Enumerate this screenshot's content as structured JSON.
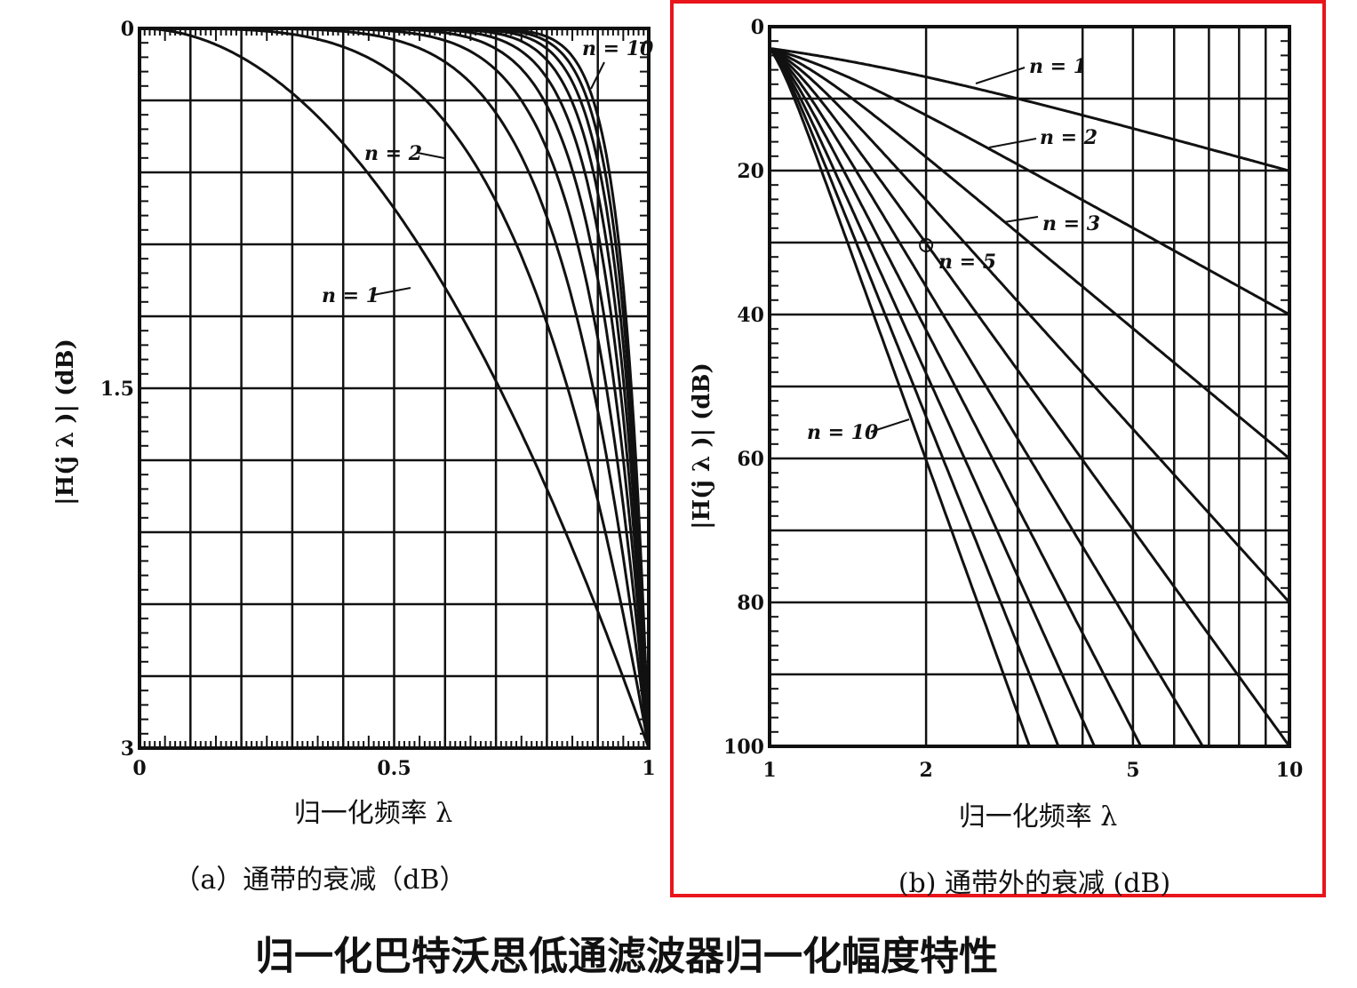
{
  "title": "归一化巴特沃思低通滤波器归一化幅度特性",
  "chart_data": [
    {
      "panel": "a",
      "type": "line",
      "caption": "（a）通带的衰减（dB）",
      "xlabel": "归一化频率  λ",
      "ylabel": "|H(j λ )|  (dB)",
      "x_ticks": [
        "0",
        "0.5",
        "1"
      ],
      "y_ticks": [
        "0",
        "1.5",
        "3"
      ],
      "xlim": [
        0,
        1
      ],
      "ylim": [
        0,
        3
      ],
      "y_inverted": true,
      "grid": true,
      "series": [
        {
          "name": "n = 1",
          "n": 1
        },
        {
          "n": 2
        },
        {
          "n": 3
        },
        {
          "n": 4
        },
        {
          "n": 5
        },
        {
          "n": 6
        },
        {
          "n": 7
        },
        {
          "n": 8
        },
        {
          "n": 9
        },
        {
          "name": "n = 10",
          "n": 10
        }
      ],
      "annotations": [
        "n = 1",
        "n = 2",
        "n = 10"
      ]
    },
    {
      "panel": "b",
      "type": "line",
      "caption": "(b) 通带外的衰减 (dB)",
      "xlabel": "归一化频率  λ",
      "ylabel": "|H(j λ )|  (dB)",
      "x_ticks": [
        "1",
        "2",
        "5",
        "10"
      ],
      "y_ticks": [
        "0",
        "20",
        "40",
        "60",
        "80",
        "100"
      ],
      "xlim": [
        1,
        10
      ],
      "x_scale": "log",
      "ylim": [
        0,
        100
      ],
      "y_inverted": true,
      "grid": true,
      "series": [
        {
          "name": "n = 1",
          "n": 1
        },
        {
          "name": "n = 2",
          "n": 2
        },
        {
          "name": "n = 3",
          "n": 3
        },
        {
          "n": 4
        },
        {
          "name": "n = 5",
          "n": 5
        },
        {
          "n": 6
        },
        {
          "n": 7
        },
        {
          "n": 8
        },
        {
          "n": 9
        },
        {
          "name": "n = 10",
          "n": 10
        }
      ],
      "annotations": [
        "n = 1",
        "n = 2",
        "n = 3",
        "n = 5",
        "n = 10"
      ]
    }
  ],
  "colors": {
    "line": "#111111",
    "highlight_border": "#e8151b",
    "background": "#ffffff"
  }
}
